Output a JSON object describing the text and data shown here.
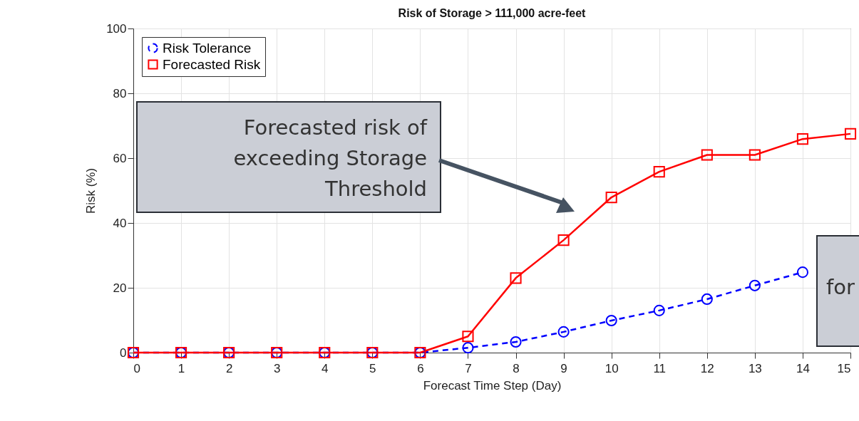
{
  "chart_data": {
    "type": "line",
    "title": "Risk of Storage > 111,000 acre-feet",
    "xlabel": "Forecast Time Step (Day)",
    "ylabel": "Risk (%)",
    "x": [
      0,
      1,
      2,
      3,
      4,
      5,
      6,
      7,
      8,
      9,
      10,
      11,
      12,
      13,
      14,
      15
    ],
    "series": [
      {
        "name": "Risk Tolerance",
        "color": "#0000ff",
        "marker": "circle",
        "line_style": "dashed",
        "values": [
          0,
          0,
          0,
          0,
          0,
          0,
          0,
          1.5,
          3.3,
          6.4,
          9.9,
          13,
          16.5,
          20.7,
          24.8,
          null
        ]
      },
      {
        "name": "Forecasted Risk",
        "color": "#ff0000",
        "marker": "square",
        "line_style": "solid",
        "values": [
          0,
          0,
          0,
          0,
          0,
          0,
          0,
          5,
          23,
          34.7,
          47.9,
          55.8,
          61,
          61,
          65.9,
          67.5
        ]
      }
    ],
    "xlim": [
      0,
      15
    ],
    "xticks": [
      0,
      1,
      2,
      3,
      4,
      5,
      6,
      7,
      8,
      9,
      10,
      11,
      12,
      13,
      14,
      15
    ],
    "ylim": [
      0,
      100
    ],
    "yticks": [
      0,
      20,
      40,
      60,
      80,
      100
    ],
    "grid": true,
    "legend": "top left",
    "annotations": [
      "Forecasted risk of exceeding Storage Threshold",
      "for"
    ]
  }
}
